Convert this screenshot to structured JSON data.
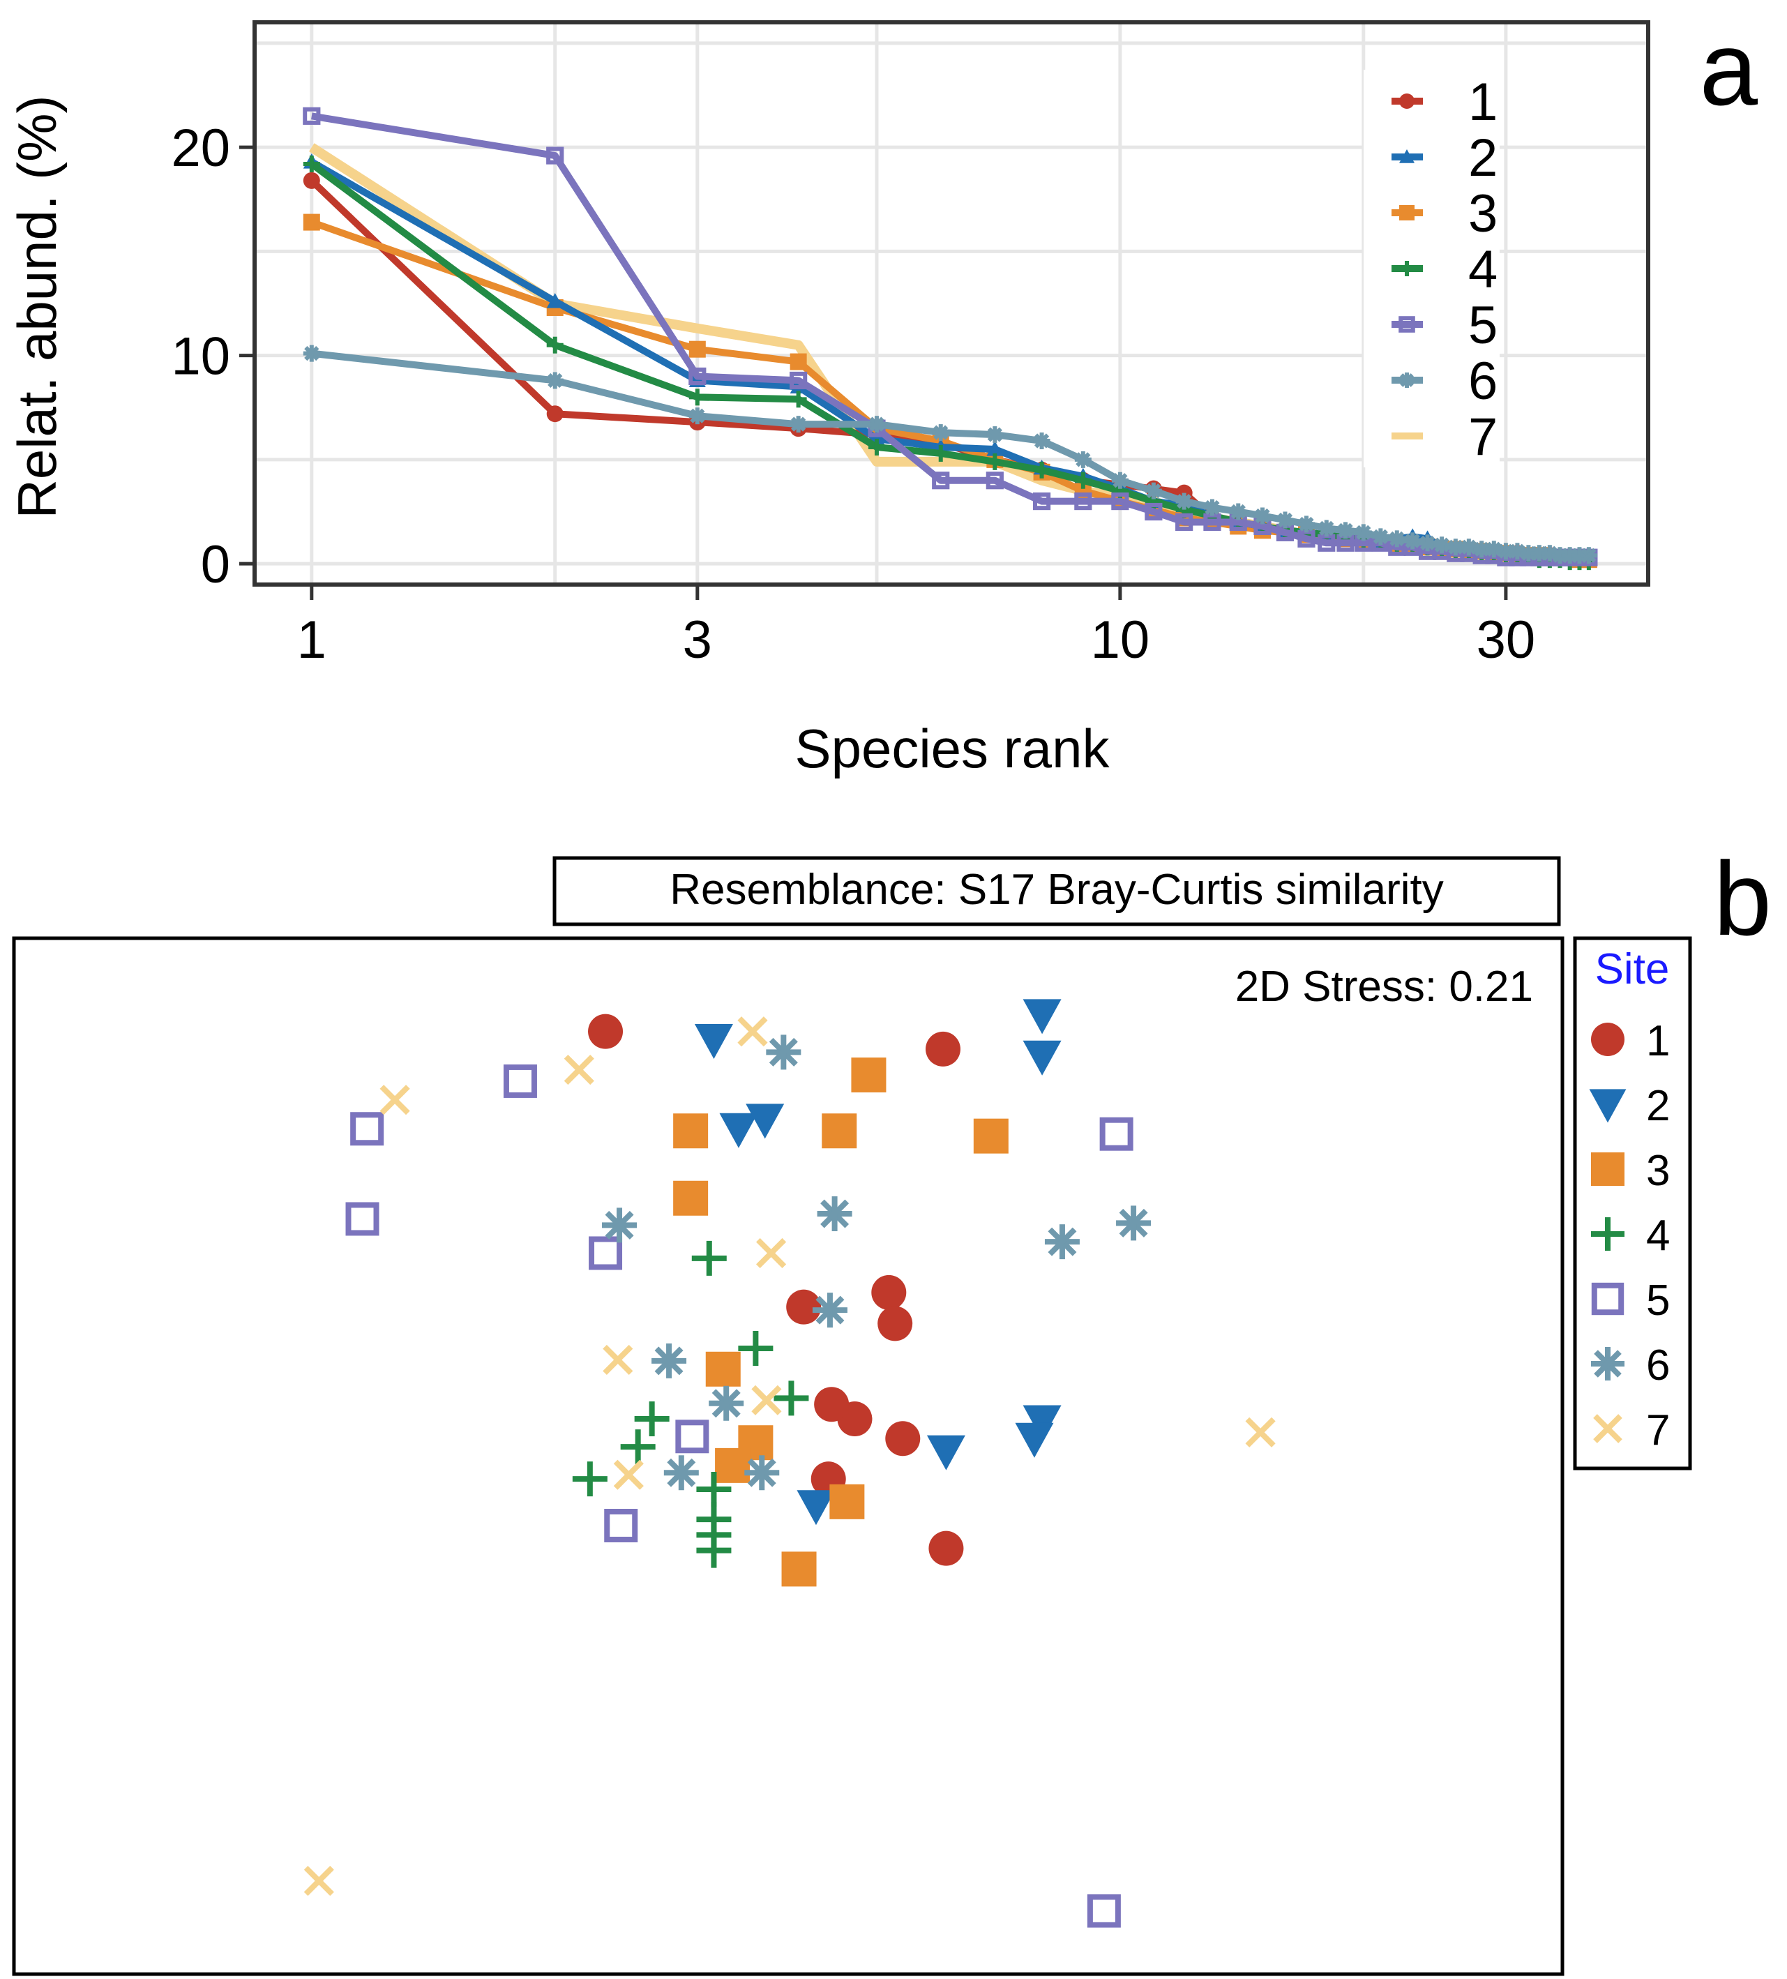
{
  "panel_labels": {
    "a": "a",
    "b": "b"
  },
  "colors": {
    "s1": "#c0392b",
    "s2": "#1f6fb4",
    "s3": "#e88b2e",
    "s4": "#238b45",
    "s5": "#7b74bd",
    "s6": "#6f99ad",
    "s7": "#f6d38c",
    "grid": "#e6e6e6",
    "axis": "#333333",
    "site_title": "#1a1aff"
  },
  "chart_data": [
    {
      "type": "line",
      "title": "",
      "xlabel": "Species rank",
      "ylabel": "Relat. abund. (%)",
      "xscale": "log",
      "xlim": [
        0.85,
        45
      ],
      "ylim": [
        -1,
        26
      ],
      "xticks": [
        1,
        3,
        10,
        30
      ],
      "xtick_labels": [
        "1",
        "3",
        "10",
        "30"
      ],
      "yticks": [
        0,
        10,
        20
      ],
      "ytick_labels": [
        "0",
        "10",
        "20"
      ],
      "grid": true,
      "legend_position": "top-right",
      "series": [
        {
          "name": "1",
          "marker": "circle",
          "x": [
            1,
            2,
            3,
            4,
            5,
            6,
            7,
            8,
            9,
            10,
            11,
            12,
            13,
            14,
            15,
            16,
            17,
            18,
            19,
            20,
            21,
            22,
            23,
            24,
            25,
            26,
            27,
            28,
            29,
            30,
            31,
            32,
            33,
            34,
            35,
            36,
            37,
            38
          ],
          "y": [
            18.4,
            7.2,
            6.8,
            6.5,
            6.2,
            5.8,
            5.0,
            4.5,
            4.0,
            3.8,
            3.6,
            3.4,
            2.2,
            2.0,
            1.8,
            1.6,
            1.5,
            1.4,
            1.3,
            1.2,
            1.1,
            1.0,
            0.9,
            0.8,
            0.7,
            0.7,
            0.6,
            0.6,
            0.5,
            0.5,
            0.5,
            0.4,
            0.4,
            0.4,
            0.3,
            0.3,
            0.3,
            0.3
          ]
        },
        {
          "name": "2",
          "marker": "triangle",
          "x": [
            1,
            2,
            3,
            4,
            5,
            6,
            7,
            8,
            9,
            10,
            11,
            12,
            13,
            14,
            15,
            16,
            17,
            18,
            19,
            20,
            21,
            22,
            23,
            24,
            25,
            26,
            27,
            28,
            29,
            30,
            31,
            32,
            33,
            34,
            35,
            36,
            37,
            38
          ],
          "y": [
            19.3,
            12.6,
            8.8,
            8.5,
            6.0,
            5.6,
            5.5,
            4.6,
            4.2,
            3.6,
            3.0,
            2.8,
            2.3,
            2.0,
            1.8,
            1.6,
            1.5,
            1.4,
            1.3,
            1.2,
            1.1,
            1.2,
            1.3,
            1.2,
            0.8,
            0.7,
            0.7,
            0.6,
            0.6,
            0.5,
            0.5,
            0.4,
            0.4,
            0.4,
            0.3,
            0.3,
            0.3,
            0.3
          ]
        },
        {
          "name": "3",
          "marker": "square",
          "x": [
            1,
            2,
            3,
            4,
            5,
            6,
            7,
            8,
            9,
            10,
            11,
            12,
            13,
            14,
            15,
            16,
            17,
            18,
            19,
            20,
            21,
            22,
            23,
            24,
            25,
            26,
            27,
            28,
            29,
            30,
            31,
            32,
            33,
            34,
            35,
            36,
            37,
            38
          ],
          "y": [
            16.4,
            12.3,
            10.3,
            9.7,
            6.5,
            5.9,
            5.0,
            4.4,
            3.5,
            3.0,
            2.6,
            2.2,
            2.0,
            1.8,
            1.6,
            1.5,
            1.4,
            1.3,
            1.2,
            1.1,
            1.0,
            0.9,
            0.9,
            0.8,
            0.7,
            0.7,
            0.6,
            0.6,
            0.5,
            0.5,
            0.4,
            0.4,
            0.4,
            0.3,
            0.3,
            0.3,
            0.2,
            0.2
          ]
        },
        {
          "name": "4",
          "marker": "plus",
          "x": [
            1,
            2,
            3,
            4,
            5,
            6,
            7,
            8,
            9,
            10,
            11,
            12,
            13,
            14,
            15,
            16,
            17,
            18,
            19,
            20,
            21,
            22,
            23,
            24,
            25,
            26,
            27,
            28,
            29,
            30,
            31,
            32,
            33,
            34,
            35,
            36,
            37,
            38
          ],
          "y": [
            19.2,
            10.5,
            8.0,
            7.9,
            5.6,
            5.3,
            4.9,
            4.5,
            4.0,
            3.5,
            3.0,
            2.6,
            2.3,
            2.0,
            1.8,
            1.6,
            1.5,
            1.4,
            1.3,
            1.1,
            1.0,
            0.9,
            0.8,
            0.8,
            0.7,
            0.6,
            0.6,
            0.5,
            0.4,
            0.4,
            0.3,
            0.3,
            0.2,
            0.2,
            0.2,
            0.1,
            0.1,
            0.1
          ]
        },
        {
          "name": "5",
          "marker": "square-open",
          "x": [
            1,
            2,
            3,
            4,
            5,
            6,
            7,
            8,
            9,
            10,
            11,
            12,
            13,
            14,
            15,
            16,
            17,
            18,
            19,
            20,
            21,
            22,
            23,
            24,
            25,
            26,
            27,
            28,
            29,
            30,
            31,
            32,
            33,
            34,
            35,
            36,
            37,
            38
          ],
          "y": [
            21.5,
            19.6,
            9.0,
            8.8,
            6.5,
            4.0,
            4.0,
            3.0,
            3.0,
            3.0,
            2.5,
            2.0,
            2.0,
            2.0,
            1.8,
            1.5,
            1.2,
            1.0,
            1.0,
            1.0,
            1.0,
            0.8,
            0.8,
            0.6,
            0.6,
            0.5,
            0.5,
            0.4,
            0.4,
            0.3,
            0.3,
            0.3,
            0.3,
            0.3,
            0.3,
            0.3,
            0.3,
            0.3
          ]
        },
        {
          "name": "6",
          "marker": "asterisk",
          "x": [
            1,
            2,
            3,
            4,
            5,
            6,
            7,
            8,
            9,
            10,
            11,
            12,
            13,
            14,
            15,
            16,
            17,
            18,
            19,
            20,
            21,
            22,
            23,
            24,
            25,
            26,
            27,
            28,
            29,
            30,
            31,
            32,
            33,
            34,
            35,
            36,
            37,
            38
          ],
          "y": [
            10.1,
            8.8,
            7.1,
            6.7,
            6.7,
            6.3,
            6.2,
            5.9,
            5.0,
            4.0,
            3.5,
            3.0,
            2.7,
            2.5,
            2.3,
            2.1,
            1.9,
            1.7,
            1.6,
            1.5,
            1.3,
            1.2,
            1.1,
            1.0,
            0.9,
            0.8,
            0.8,
            0.7,
            0.7,
            0.6,
            0.6,
            0.5,
            0.5,
            0.5,
            0.4,
            0.4,
            0.4,
            0.4
          ]
        },
        {
          "name": "7",
          "marker": "line",
          "x": [
            1,
            2,
            3,
            4,
            5,
            6,
            7,
            8,
            9,
            10,
            11,
            12,
            13,
            14,
            15,
            16,
            17,
            18,
            19,
            20,
            21,
            22,
            23,
            24,
            25,
            26,
            27,
            28,
            29,
            30,
            31,
            32,
            33,
            34,
            35,
            36,
            37,
            38
          ],
          "y": [
            20.0,
            12.5,
            11.3,
            10.5,
            4.9,
            4.9,
            4.9,
            4.0,
            3.5,
            3.2,
            3.0,
            2.5,
            2.2,
            2.0,
            1.8,
            1.6,
            1.4,
            1.3,
            1.2,
            1.1,
            1.0,
            0.9,
            0.8,
            0.8,
            0.7,
            0.6,
            0.6,
            0.5,
            0.5,
            0.5,
            0.4,
            0.4,
            0.4,
            0.3,
            0.3,
            0.3,
            0.3,
            0.3
          ]
        }
      ]
    },
    {
      "type": "scatter",
      "title": "Resemblance: S17 Bray-Curtis similarity",
      "annotation": "2D Stress: 0.21",
      "xlabel": "",
      "ylabel": "",
      "xlim": [
        0,
        100
      ],
      "ylim": [
        0,
        100
      ],
      "grid": false,
      "axes_visible": false,
      "legend_title": "Site",
      "legend_position": "right",
      "series": [
        {
          "name": "1",
          "marker": "circle",
          "points": [
            [
              38.2,
              91.0
            ],
            [
              60.0,
              89.3
            ],
            [
              51.0,
              64.4
            ],
            [
              56.5,
              65.8
            ],
            [
              56.9,
              62.8
            ],
            [
              54.3,
              53.6
            ],
            [
              52.8,
              55.0
            ],
            [
              57.4,
              51.7
            ],
            [
              52.6,
              47.8
            ],
            [
              60.2,
              41.1
            ]
          ]
        },
        {
          "name": "2",
          "marker": "triangle-down",
          "points": [
            [
              66.4,
              92.6
            ],
            [
              66.4,
              88.6
            ],
            [
              45.2,
              90.2
            ],
            [
              48.5,
              82.5
            ],
            [
              46.8,
              81.6
            ],
            [
              66.4,
              53.4
            ],
            [
              65.9,
              51.7
            ],
            [
              60.2,
              50.5
            ],
            [
              51.8,
              45.2
            ]
          ]
        },
        {
          "name": "3",
          "marker": "square",
          "points": [
            [
              55.2,
              86.8
            ],
            [
              43.7,
              81.4
            ],
            [
              53.3,
              81.4
            ],
            [
              63.1,
              80.9
            ],
            [
              43.7,
              74.9
            ],
            [
              45.8,
              58.4
            ],
            [
              47.9,
              51.3
            ],
            [
              46.4,
              49.1
            ],
            [
              53.8,
              45.6
            ],
            [
              50.7,
              39.1
            ]
          ]
        },
        {
          "name": "4",
          "marker": "plus",
          "points": [
            [
              44.9,
              69.1
            ],
            [
              47.9,
              60.4
            ],
            [
              50.2,
              55.6
            ],
            [
              41.2,
              53.6
            ],
            [
              40.3,
              50.9
            ],
            [
              37.2,
              47.8
            ],
            [
              45.2,
              46.8
            ],
            [
              45.2,
              43.9
            ],
            [
              45.2,
              42.4
            ],
            [
              45.2,
              40.9
            ]
          ]
        },
        {
          "name": "5",
          "marker": "square-open",
          "points": [
            [
              32.7,
              86.2
            ],
            [
              22.8,
              81.6
            ],
            [
              71.2,
              81.1
            ],
            [
              22.5,
              72.9
            ],
            [
              38.2,
              69.6
            ],
            [
              43.8,
              51.9
            ],
            [
              39.2,
              43.3
            ],
            [
              70.4,
              6.1
            ]
          ]
        },
        {
          "name": "6",
          "marker": "asterisk",
          "points": [
            [
              49.7,
              89.0
            ],
            [
              53.0,
              73.4
            ],
            [
              39.1,
              72.3
            ],
            [
              72.3,
              72.5
            ],
            [
              67.7,
              70.7
            ],
            [
              52.7,
              64.1
            ],
            [
              42.3,
              59.2
            ],
            [
              46.0,
              55.1
            ],
            [
              43.1,
              48.4
            ],
            [
              48.3,
              48.4
            ]
          ]
        },
        {
          "name": "7",
          "marker": "x",
          "points": [
            [
              47.7,
              91.0
            ],
            [
              36.5,
              87.3
            ],
            [
              24.6,
              84.4
            ],
            [
              48.9,
              69.6
            ],
            [
              39.0,
              59.3
            ],
            [
              48.6,
              55.4
            ],
            [
              80.5,
              52.3
            ],
            [
              39.7,
              48.2
            ],
            [
              19.7,
              9.0
            ]
          ]
        }
      ]
    }
  ]
}
